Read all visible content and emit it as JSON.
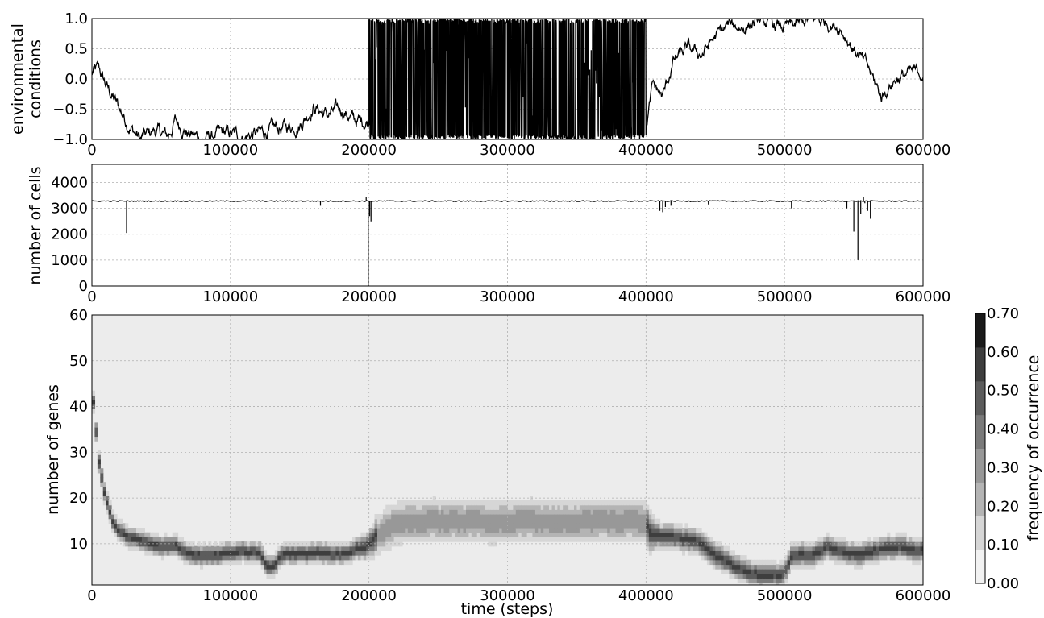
{
  "chart_data": [
    {
      "type": "line",
      "ylabel_line1": "environmental",
      "ylabel_line2": "conditions",
      "xlim": [
        0,
        600000
      ],
      "ylim": [
        -1.0,
        1.0
      ],
      "grid": true,
      "x_ticks": [
        "0",
        "100000",
        "200000",
        "300000",
        "400000",
        "500000",
        "600000"
      ],
      "y_ticks": [
        "−1.0",
        "−0.5",
        "0.0",
        "0.5",
        "1.0"
      ],
      "series": [
        {
          "segments": [
            {
              "x_range": [
                0,
                200000
              ],
              "behavior": "slow random walk",
              "anchors": [
                [
                  0,
                  0.1
                ],
                [
                  5000,
                  0.15
                ],
                [
                  10000,
                  -0.1
                ],
                [
                  20000,
                  -0.5
                ],
                [
                  28000,
                  -0.8
                ],
                [
                  35000,
                  -1.0
                ],
                [
                  45000,
                  -0.85
                ],
                [
                  55000,
                  -0.95
                ],
                [
                  60000,
                  -0.7
                ],
                [
                  70000,
                  -0.9
                ],
                [
                  80000,
                  -1.0
                ],
                [
                  95000,
                  -0.9
                ],
                [
                  110000,
                  -0.95
                ],
                [
                  130000,
                  -0.85
                ],
                [
                  150000,
                  -0.75
                ],
                [
                  160000,
                  -0.45
                ],
                [
                  170000,
                  -0.6
                ],
                [
                  180000,
                  -0.5
                ],
                [
                  190000,
                  -0.7
                ],
                [
                  200000,
                  -0.7
                ]
              ]
            },
            {
              "x_range": [
                200000,
                400000
              ],
              "behavior": "rapid oscillation between -1.0 and 1.0"
            },
            {
              "x_range": [
                400000,
                600000
              ],
              "behavior": "slow random walk",
              "anchors": [
                [
                  400000,
                  -0.8
                ],
                [
                  405000,
                  -0.1
                ],
                [
                  412000,
                  -0.3
                ],
                [
                  420000,
                  0.3
                ],
                [
                  430000,
                  0.5
                ],
                [
                  440000,
                  0.4
                ],
                [
                  450000,
                  0.7
                ],
                [
                  460000,
                  0.9
                ],
                [
                  470000,
                  0.85
                ],
                [
                  480000,
                  0.95
                ],
                [
                  490000,
                  0.9
                ],
                [
                  500000,
                  0.85
                ],
                [
                  510000,
                  0.9
                ],
                [
                  520000,
                  1.0
                ],
                [
                  530000,
                  0.95
                ],
                [
                  540000,
                  0.85
                ],
                [
                  550000,
                  0.5
                ],
                [
                  560000,
                  0.2
                ],
                [
                  570000,
                  -0.3
                ],
                [
                  580000,
                  0.0
                ],
                [
                  590000,
                  0.1
                ],
                [
                  600000,
                  0.1
                ]
              ]
            }
          ]
        }
      ]
    },
    {
      "type": "line",
      "ylabel": "number of cells",
      "xlim": [
        0,
        600000
      ],
      "ylim": [
        0,
        4700
      ],
      "grid": true,
      "x_ticks": [
        "0",
        "100000",
        "200000",
        "300000",
        "400000",
        "500000",
        "600000"
      ],
      "y_ticks": [
        "0",
        "1000",
        "2000",
        "3000",
        "4000"
      ],
      "baseline": 3280,
      "dips": [
        [
          25000,
          2050
        ],
        [
          165000,
          3100
        ],
        [
          199500,
          0
        ],
        [
          200500,
          2700
        ],
        [
          201500,
          2500
        ],
        [
          410000,
          2900
        ],
        [
          412000,
          2850
        ],
        [
          414000,
          3050
        ],
        [
          418000,
          3100
        ],
        [
          445000,
          3150
        ],
        [
          505000,
          3000
        ],
        [
          545000,
          3000
        ],
        [
          550000,
          2100
        ],
        [
          553000,
          1000
        ],
        [
          555000,
          2800
        ],
        [
          558000,
          3200
        ],
        [
          560000,
          2900
        ],
        [
          562000,
          2600
        ]
      ],
      "spikes": [
        [
          198000,
          3450
        ],
        [
          557000,
          3450
        ]
      ]
    },
    {
      "type": "heatmap",
      "xlabel": "time (steps)",
      "ylabel": "number of genes",
      "xlim": [
        0,
        600000
      ],
      "ylim": [
        1,
        60
      ],
      "grid": true,
      "x_ticks": [
        "0",
        "100000",
        "200000",
        "300000",
        "400000",
        "500000",
        "600000"
      ],
      "y_ticks": [
        "10",
        "20",
        "30",
        "40",
        "50",
        "60"
      ],
      "colorbar": {
        "label": "frequency of occurrence",
        "ticks": [
          "0.00",
          "0.10",
          "0.20",
          "0.30",
          "0.40",
          "0.50",
          "0.60",
          "0.70"
        ],
        "colors": [
          "#f2f2f2",
          "#d6d6d6",
          "#b4b4b4",
          "#989898",
          "#7a7a7a",
          "#5c5c5c",
          "#3e3e3e",
          "#1a1a1a"
        ]
      },
      "ridge": [
        [
          0,
          44
        ],
        [
          5000,
          28
        ],
        [
          10000,
          20
        ],
        [
          15000,
          15
        ],
        [
          20000,
          12.5
        ],
        [
          30000,
          11
        ],
        [
          40000,
          10
        ],
        [
          50000,
          9
        ],
        [
          60000,
          10
        ],
        [
          70000,
          8
        ],
        [
          80000,
          7.5
        ],
        [
          90000,
          7.5
        ],
        [
          100000,
          8
        ],
        [
          115000,
          8
        ],
        [
          122000,
          8
        ],
        [
          126000,
          5
        ],
        [
          132000,
          5
        ],
        [
          136000,
          7.5
        ],
        [
          150000,
          8
        ],
        [
          170000,
          8
        ],
        [
          180000,
          8
        ],
        [
          190000,
          9
        ],
        [
          200000,
          10
        ],
        [
          210000,
          13
        ],
        [
          220000,
          14.5
        ],
        [
          230000,
          15
        ],
        [
          250000,
          15
        ],
        [
          300000,
          15
        ],
        [
          350000,
          15
        ],
        [
          380000,
          15
        ],
        [
          400000,
          15
        ],
        [
          402000,
          13
        ],
        [
          410000,
          12
        ],
        [
          420000,
          11.5
        ],
        [
          440000,
          10.5
        ],
        [
          450000,
          8
        ],
        [
          460000,
          6
        ],
        [
          470000,
          4.5
        ],
        [
          480000,
          3.5
        ],
        [
          495000,
          3
        ],
        [
          500000,
          4
        ],
        [
          505000,
          7
        ],
        [
          520000,
          8
        ],
        [
          530000,
          9.5
        ],
        [
          540000,
          9
        ],
        [
          550000,
          8
        ],
        [
          560000,
          8.5
        ],
        [
          570000,
          9
        ],
        [
          580000,
          9
        ],
        [
          590000,
          8.5
        ],
        [
          600000,
          9
        ]
      ],
      "ridge_width": [
        [
          0,
          1.8
        ],
        [
          190000,
          1.8
        ],
        [
          200000,
          2.5
        ],
        [
          210000,
          4
        ],
        [
          400000,
          4
        ],
        [
          410000,
          2.2
        ],
        [
          600000,
          2
        ]
      ]
    }
  ]
}
